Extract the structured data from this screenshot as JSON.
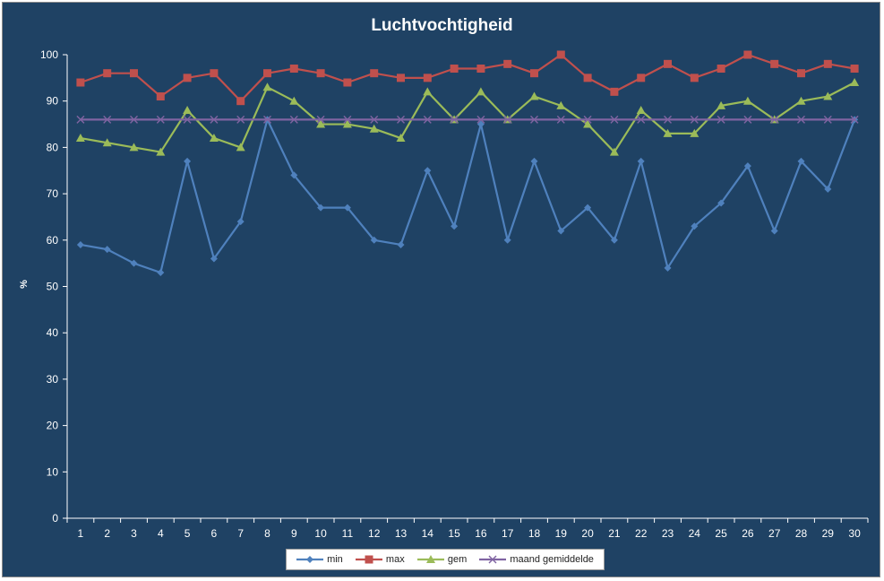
{
  "chart_data": {
    "type": "line",
    "title": "Luchtvochtigheid",
    "xlabel": "",
    "ylabel": "%",
    "ylim": [
      0,
      100
    ],
    "yticks": [
      "0",
      "10",
      "20",
      "30",
      "40",
      "50",
      "60",
      "70",
      "80",
      "90",
      "100"
    ],
    "categories": [
      "1",
      "2",
      "3",
      "4",
      "5",
      "6",
      "7",
      "8",
      "9",
      "10",
      "11",
      "12",
      "13",
      "14",
      "15",
      "16",
      "17",
      "18",
      "19",
      "20",
      "21",
      "22",
      "23",
      "24",
      "25",
      "26",
      "27",
      "28",
      "29",
      "30"
    ],
    "grid": false,
    "legend_position": "bottom",
    "series": [
      {
        "name": "min",
        "color": "#4f81bd",
        "marker": "diamond",
        "values": [
          59,
          58,
          55,
          53,
          77,
          56,
          64,
          86,
          74,
          67,
          67,
          60,
          59,
          75,
          63,
          85,
          60,
          77,
          62,
          67,
          60,
          77,
          54,
          63,
          68,
          76,
          62,
          77,
          71,
          86
        ]
      },
      {
        "name": "max",
        "color": "#c0504d",
        "marker": "square",
        "values": [
          94,
          96,
          96,
          91,
          95,
          96,
          90,
          96,
          97,
          96,
          94,
          96,
          95,
          95,
          97,
          97,
          98,
          96,
          100,
          95,
          92,
          95,
          98,
          95,
          97,
          100,
          98,
          96,
          98,
          97
        ]
      },
      {
        "name": "gem",
        "color": "#9bbb59",
        "marker": "triangle",
        "values": [
          82,
          81,
          80,
          79,
          88,
          82,
          80,
          93,
          90,
          85,
          85,
          84,
          82,
          92,
          86,
          92,
          86,
          91,
          89,
          85,
          79,
          88,
          83,
          83,
          89,
          90,
          86,
          90,
          91,
          94
        ]
      },
      {
        "name": "maand gemiddelde",
        "color": "#8064a2",
        "marker": "x",
        "values": [
          86,
          86,
          86,
          86,
          86,
          86,
          86,
          86,
          86,
          86,
          86,
          86,
          86,
          86,
          86,
          86,
          86,
          86,
          86,
          86,
          86,
          86,
          86,
          86,
          86,
          86,
          86,
          86,
          86,
          86
        ]
      }
    ]
  }
}
